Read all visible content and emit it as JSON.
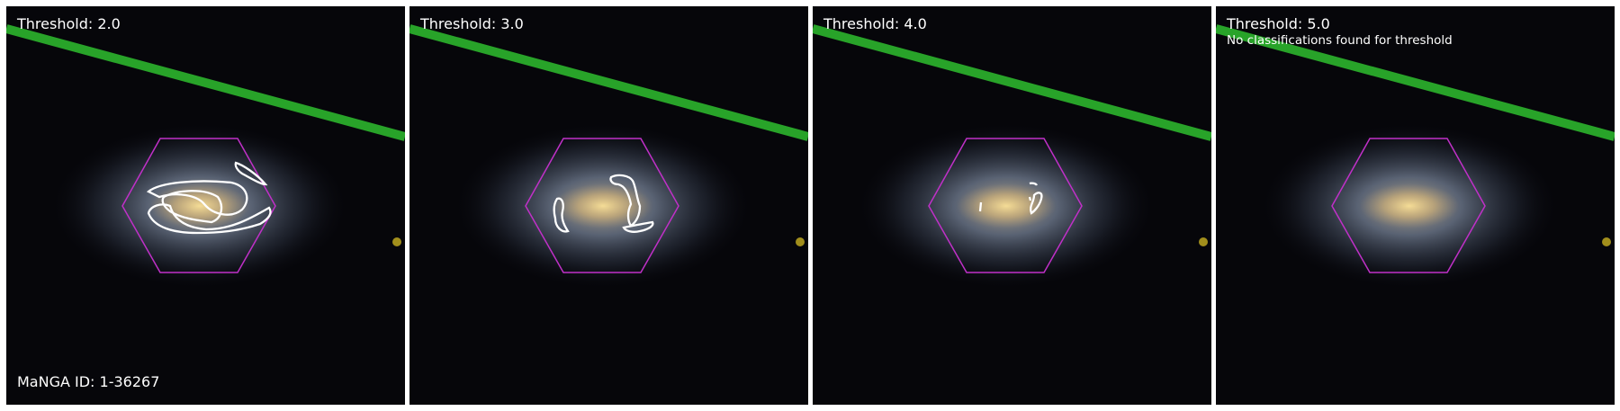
{
  "figure": {
    "manga_label": "MaNGA ID: 1-36267",
    "panels": [
      {
        "threshold_label": "Threshold: 2.0",
        "note": ""
      },
      {
        "threshold_label": "Threshold: 3.0",
        "note": ""
      },
      {
        "threshold_label": "Threshold: 4.0",
        "note": ""
      },
      {
        "threshold_label": "Threshold: 5.0",
        "note": "No classifications found for threshold"
      }
    ]
  },
  "colors": {
    "background": "#06060a",
    "hexagon": "#c030c8",
    "contour": "#ffffff",
    "streak": "#2fbf2f",
    "galaxy_core": "#e8cf8a",
    "galaxy_halo": "#8a9cb8"
  }
}
